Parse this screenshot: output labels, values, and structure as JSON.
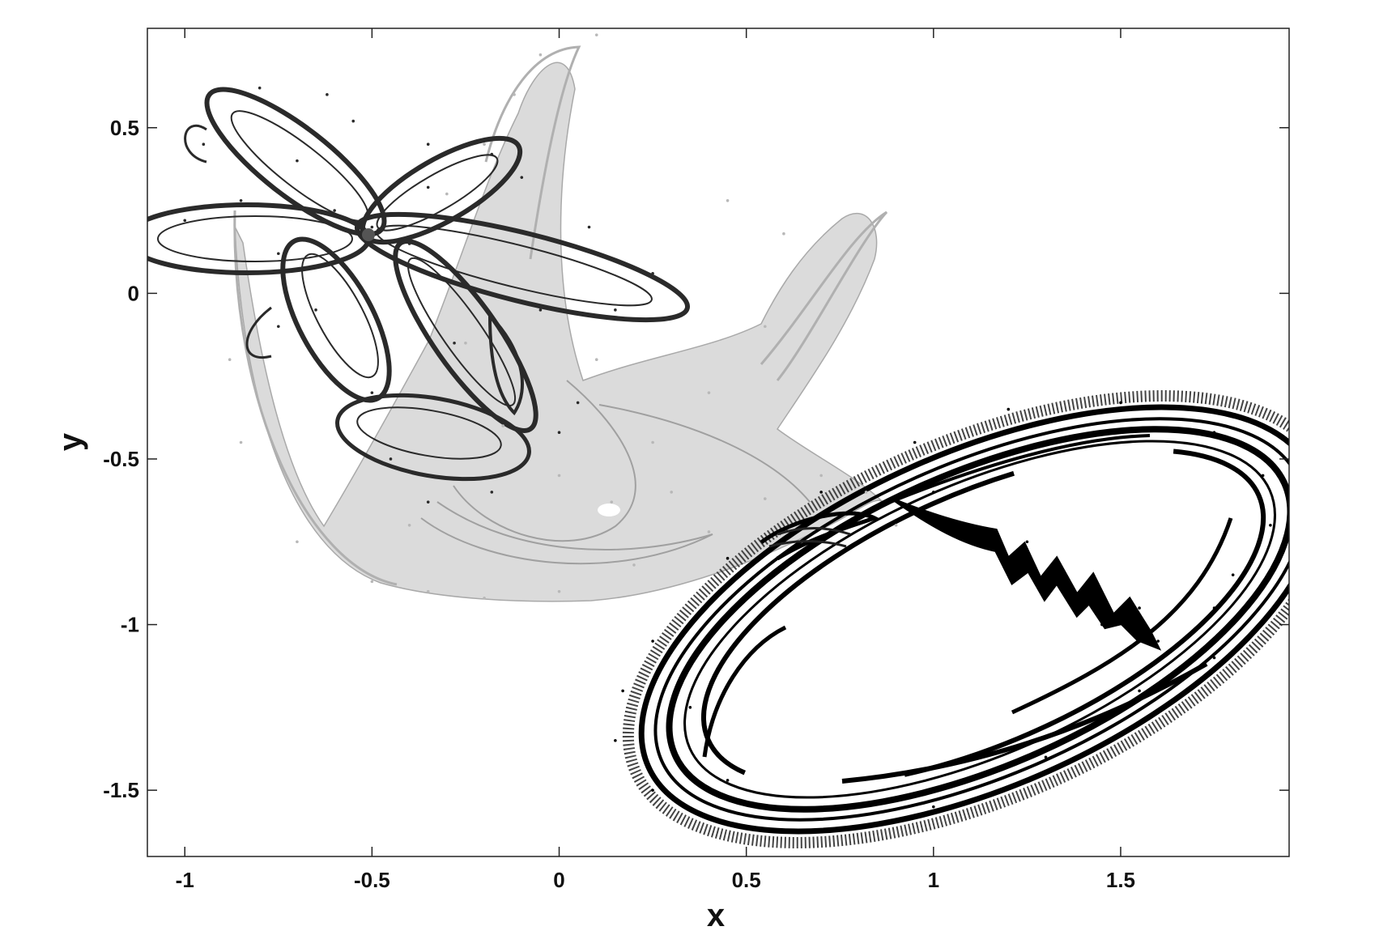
{
  "chart_data": {
    "type": "scatter",
    "title": "",
    "xlabel": "x",
    "ylabel": "y",
    "xlim": [
      -1.1,
      1.95
    ],
    "ylim": [
      -1.7,
      0.8
    ],
    "xticks": [
      -1,
      -0.5,
      0,
      0.5,
      1,
      1.5
    ],
    "xtick_labels": [
      "-1",
      "-0.5",
      "0",
      "0.5",
      "1",
      "1.5"
    ],
    "yticks": [
      0.5,
      0,
      -0.5,
      -1,
      -1.5
    ],
    "ytick_labels": [
      "0.5",
      "0",
      "-0.5",
      "-1",
      "-1.5"
    ],
    "grid": false,
    "legend": "none",
    "series": [
      {
        "color": "#b8b8b8",
        "shape": "crescent-shaped attractor",
        "points": [
          [
            -0.88,
            -0.2
          ],
          [
            -0.85,
            -0.45
          ],
          [
            -0.7,
            -0.75
          ],
          [
            -0.5,
            -0.87
          ],
          [
            -0.35,
            -0.9
          ],
          [
            -0.2,
            -0.92
          ],
          [
            0.0,
            -0.9
          ],
          [
            0.2,
            -0.82
          ],
          [
            0.4,
            -0.72
          ],
          [
            0.55,
            -0.62
          ],
          [
            0.7,
            -0.55
          ],
          [
            0.82,
            -0.6
          ],
          [
            0.9,
            -0.7
          ],
          [
            0.1,
            0.78
          ],
          [
            -0.05,
            0.72
          ],
          [
            -0.12,
            0.6
          ],
          [
            -0.2,
            0.45
          ],
          [
            -0.3,
            0.3
          ],
          [
            0.45,
            0.28
          ],
          [
            0.6,
            0.18
          ],
          [
            0.55,
            -0.1
          ],
          [
            0.4,
            -0.3
          ],
          [
            0.25,
            -0.45
          ],
          [
            0.14,
            -0.63
          ],
          [
            0.0,
            -0.55
          ],
          [
            -0.15,
            -0.4
          ],
          [
            -0.25,
            -0.15
          ],
          [
            0.1,
            -0.2
          ],
          [
            0.3,
            -0.6
          ],
          [
            -0.4,
            -0.7
          ]
        ]
      },
      {
        "color": "#2a2a2a",
        "shape": "four-petal flower attractor",
        "points": [
          [
            -0.5,
            0.2
          ],
          [
            -0.8,
            0.62
          ],
          [
            -0.95,
            0.45
          ],
          [
            -0.85,
            0.28
          ],
          [
            -1.0,
            0.22
          ],
          [
            -0.75,
            0.12
          ],
          [
            -0.6,
            0.25
          ],
          [
            -0.35,
            0.32
          ],
          [
            -0.18,
            0.42
          ],
          [
            -0.35,
            0.45
          ],
          [
            -0.1,
            0.35
          ],
          [
            0.08,
            0.2
          ],
          [
            0.25,
            0.06
          ],
          [
            0.15,
            -0.05
          ],
          [
            -0.05,
            -0.05
          ],
          [
            -0.1,
            -0.25
          ],
          [
            0.05,
            -0.33
          ],
          [
            0.0,
            -0.42
          ],
          [
            -0.18,
            -0.6
          ],
          [
            -0.35,
            -0.63
          ],
          [
            -0.45,
            -0.5
          ],
          [
            -0.5,
            -0.3
          ],
          [
            -0.65,
            -0.05
          ],
          [
            -0.75,
            -0.1
          ],
          [
            -0.55,
            0.05
          ],
          [
            -0.7,
            0.4
          ],
          [
            -0.55,
            0.52
          ],
          [
            -0.62,
            0.6
          ],
          [
            -0.28,
            -0.15
          ],
          [
            -0.4,
            0.15
          ]
        ]
      },
      {
        "color": "#000000",
        "shape": "elliptical attractor",
        "points": [
          [
            0.15,
            -1.35
          ],
          [
            0.25,
            -1.5
          ],
          [
            0.45,
            -1.6
          ],
          [
            0.7,
            -1.62
          ],
          [
            1.0,
            -1.55
          ],
          [
            1.3,
            -1.4
          ],
          [
            1.55,
            -1.2
          ],
          [
            1.75,
            -0.95
          ],
          [
            1.9,
            -0.7
          ],
          [
            1.88,
            -0.55
          ],
          [
            1.75,
            -0.42
          ],
          [
            1.5,
            -0.33
          ],
          [
            1.2,
            -0.35
          ],
          [
            0.95,
            -0.45
          ],
          [
            0.7,
            -0.6
          ],
          [
            0.45,
            -0.8
          ],
          [
            0.25,
            -1.05
          ],
          [
            0.17,
            -1.2
          ],
          [
            1.0,
            -0.6
          ],
          [
            1.1,
            -0.7
          ],
          [
            1.25,
            -0.75
          ],
          [
            1.3,
            -0.88
          ],
          [
            1.4,
            -0.92
          ],
          [
            1.45,
            -1.0
          ],
          [
            1.55,
            -0.95
          ],
          [
            1.6,
            -1.05
          ],
          [
            1.75,
            -1.1
          ],
          [
            1.8,
            -0.85
          ],
          [
            0.45,
            -1.47
          ],
          [
            0.35,
            -1.25
          ]
        ]
      }
    ]
  }
}
